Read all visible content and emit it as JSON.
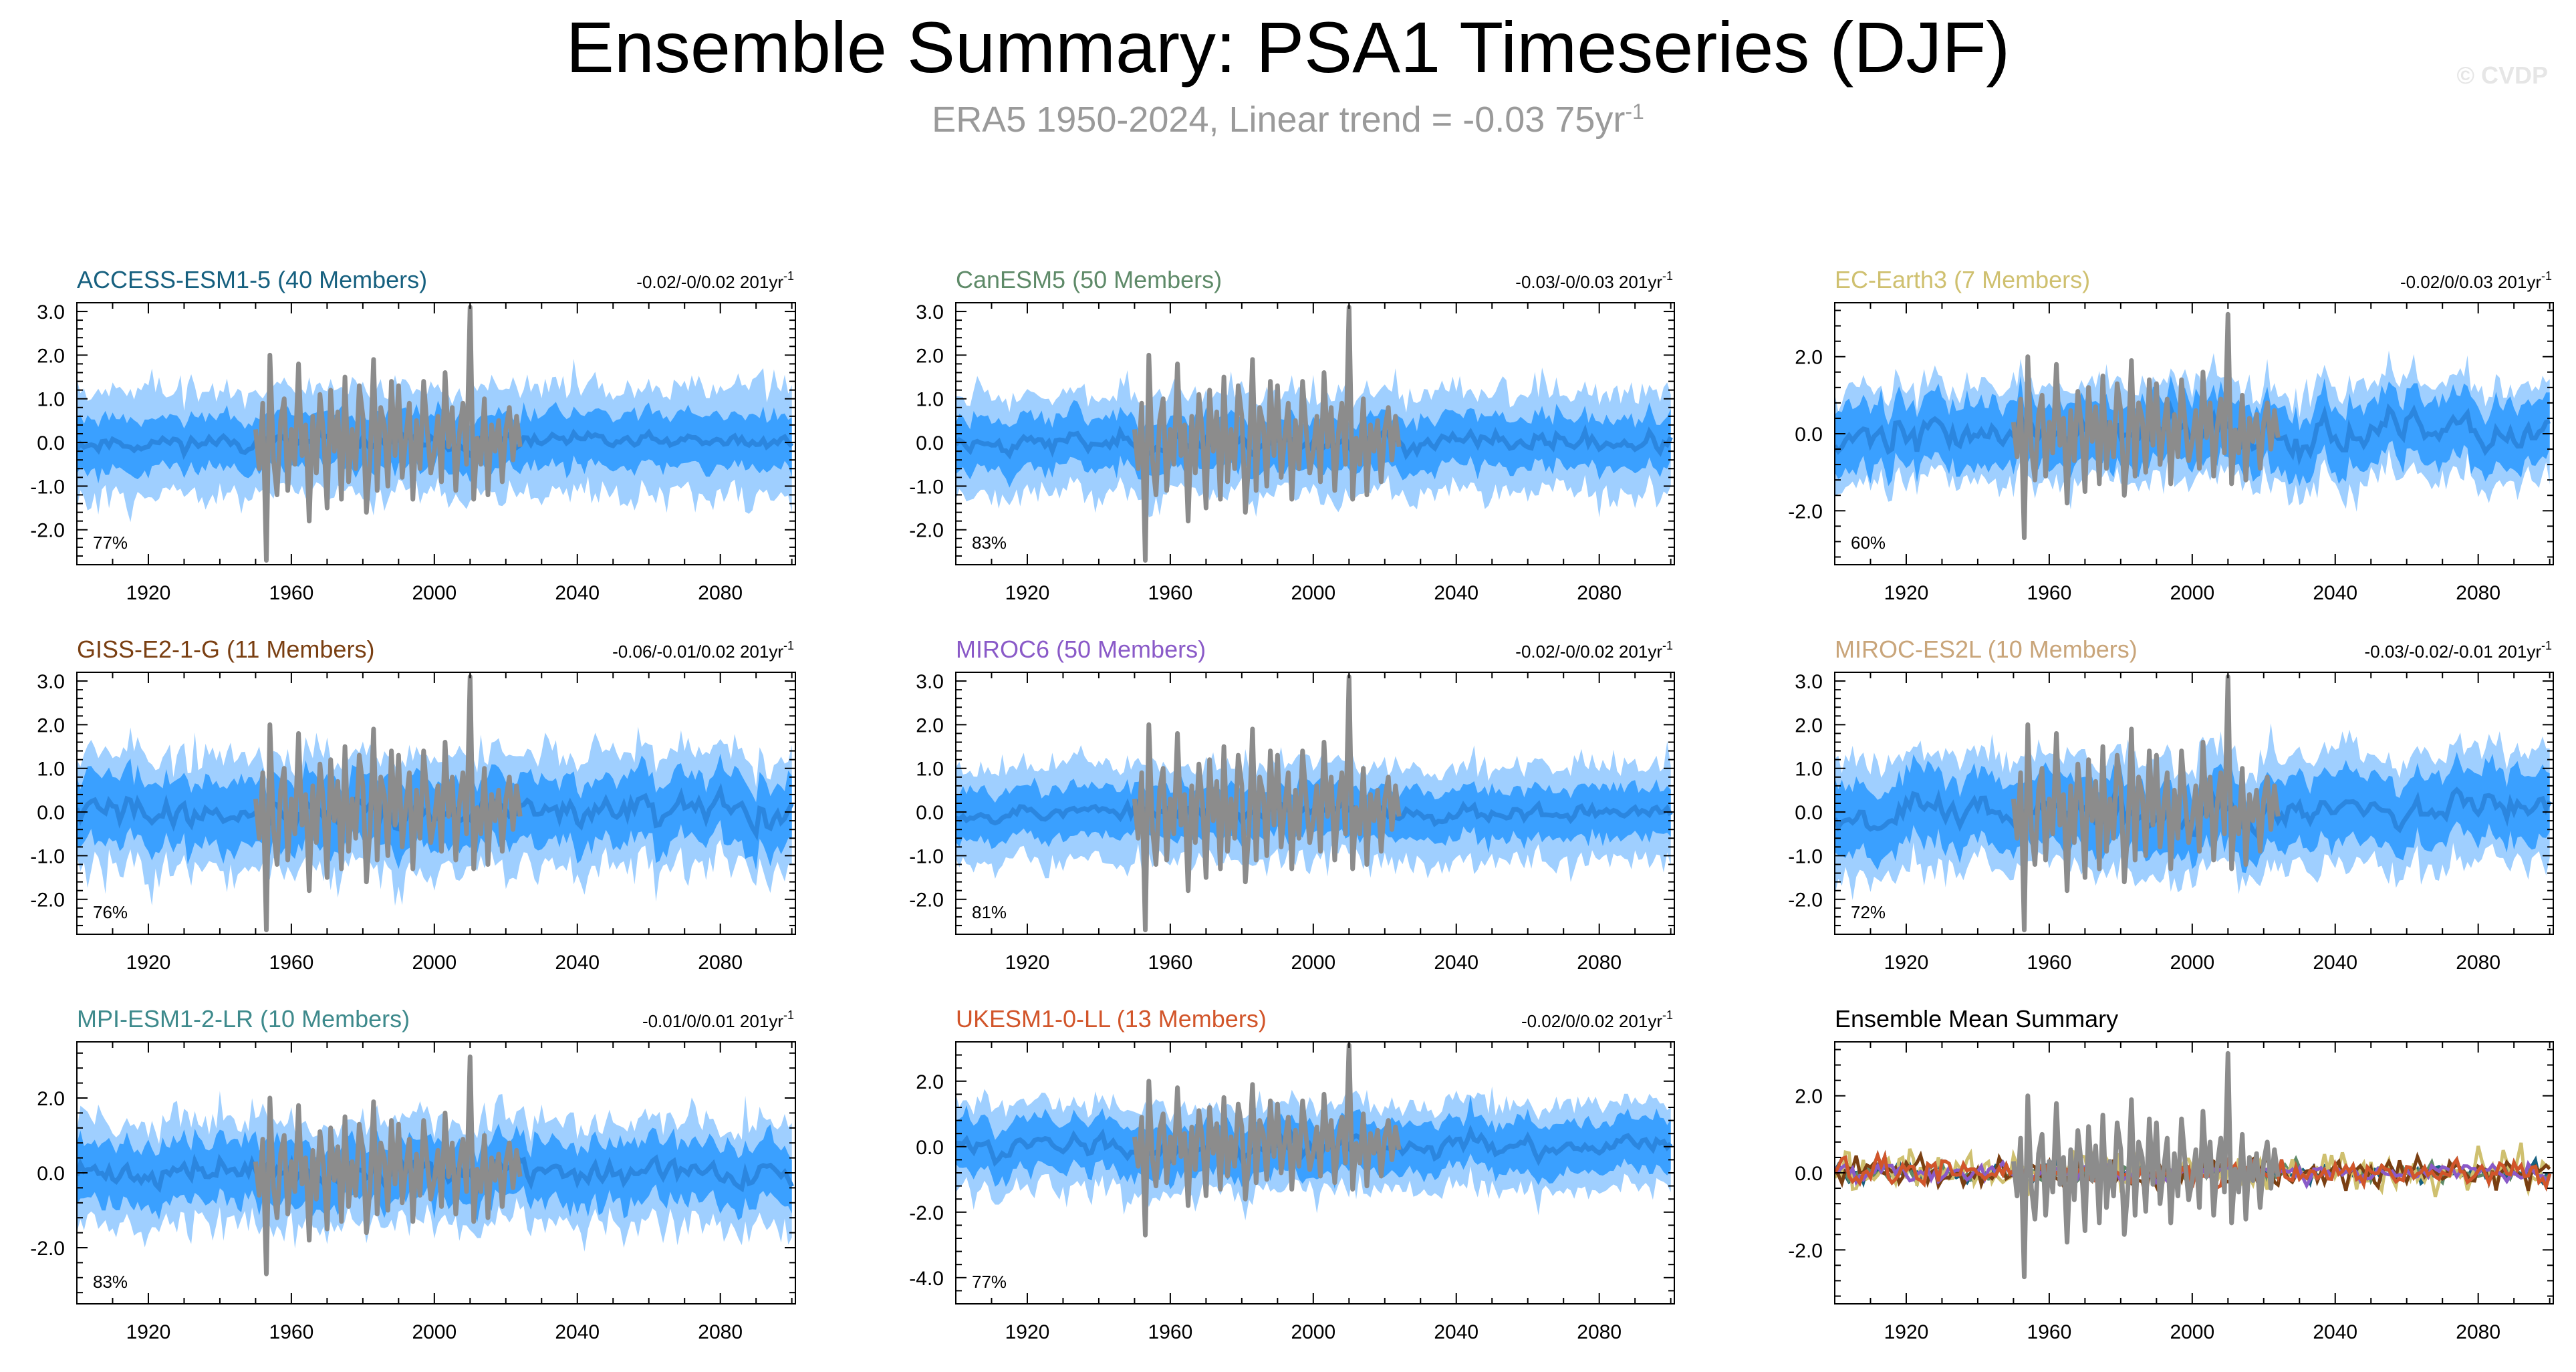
{
  "header": {
    "title": "Ensemble Summary: PSA1 Timeseries (DJF)",
    "subtitle": "ERA5 1950-2024, Linear trend = -0.03 75yr",
    "subtitle_sup": "-1",
    "watermark": "© CVDP"
  },
  "colors": {
    "outer_band": "#9fcfff",
    "inner_band": "#3aa0ff",
    "ens_mean": "#2b86df",
    "obs": "#8c8c8c",
    "axis": "#000000"
  },
  "chart_data": [
    {
      "type": "area",
      "title": "ACCESS-ESM1-5 (40 Members)",
      "title_color": "#16607f",
      "trend": "-0.02/-0/0.02 201yr",
      "trend_sup": "-1",
      "percent": "77%",
      "xlim": [
        1900,
        2101
      ],
      "ylim": [
        -2.8,
        3.2
      ],
      "yticks": [
        3,
        2,
        1,
        0,
        -1,
        -2
      ],
      "ytick_labels": [
        "3.0",
        "2.0",
        "1.0",
        "0.0",
        "-1.0",
        "-2.0"
      ],
      "xticks": [
        1920,
        1960,
        2000,
        2040,
        2080
      ],
      "xtick_labels": [
        "1920",
        "1960",
        "2000",
        "2040",
        "2080"
      ],
      "spread": {
        "outer": 1.15,
        "inner": 0.62,
        "mean_amp": 0.12
      },
      "seed": 11
    },
    {
      "type": "area",
      "title": "CanESM5 (50 Members)",
      "title_color": "#5e8a68",
      "trend": "-0.03/-0/0.03 201yr",
      "trend_sup": "-1",
      "percent": "83%",
      "xlim": [
        1900,
        2101
      ],
      "ylim": [
        -2.8,
        3.2
      ],
      "yticks": [
        3,
        2,
        1,
        0,
        -1,
        -2
      ],
      "ytick_labels": [
        "3.0",
        "2.0",
        "1.0",
        "0.0",
        "-1.0",
        "-2.0"
      ],
      "xticks": [
        1920,
        1960,
        2000,
        2040,
        2080
      ],
      "xtick_labels": [
        "1920",
        "1960",
        "2000",
        "2040",
        "2080"
      ],
      "spread": {
        "outer": 1.1,
        "inner": 0.6,
        "mean_amp": 0.14
      },
      "seed": 23
    },
    {
      "type": "area",
      "title": "EC-Earth3 (7 Members)",
      "title_color": "#cfc06f",
      "trend": "-0.02/0/0.03 201yr",
      "trend_sup": "-1",
      "percent": "60%",
      "xlim": [
        1900,
        2101
      ],
      "ylim": [
        -3.4,
        3.4
      ],
      "yticks": [
        2,
        0,
        -2
      ],
      "ytick_labels": [
        "2.0",
        "0.0",
        "-2.0"
      ],
      "xticks": [
        1920,
        1960,
        2000,
        2040,
        2080
      ],
      "xtick_labels": [
        "1920",
        "1960",
        "2000",
        "2040",
        "2080"
      ],
      "spread": {
        "outer": 1.2,
        "inner": 0.85,
        "mean_amp": 0.28
      },
      "seed": 37
    },
    {
      "type": "area",
      "title": "GISS-E2-1-G (11 Members)",
      "title_color": "#7a3f12",
      "trend": "-0.06/-0.01/0.02 201yr",
      "trend_sup": "-1",
      "percent": "76%",
      "xlim": [
        1900,
        2101
      ],
      "ylim": [
        -2.8,
        3.2
      ],
      "yticks": [
        3,
        2,
        1,
        0,
        -1,
        -2
      ],
      "ytick_labels": [
        "3.0",
        "2.0",
        "1.0",
        "0.0",
        "-1.0",
        "-2.0"
      ],
      "xticks": [
        1920,
        1960,
        2000,
        2040,
        2080
      ],
      "xtick_labels": [
        "1920",
        "1960",
        "2000",
        "2040",
        "2080"
      ],
      "spread": {
        "outer": 1.25,
        "inner": 0.78,
        "mean_amp": 0.22
      },
      "seed": 41
    },
    {
      "type": "area",
      "title": "MIROC6 (50 Members)",
      "title_color": "#8a5ac8",
      "trend": "-0.02/-0/0.02 201yr",
      "trend_sup": "-1",
      "percent": "81%",
      "xlim": [
        1900,
        2101
      ],
      "ylim": [
        -2.8,
        3.2
      ],
      "yticks": [
        3,
        2,
        1,
        0,
        -1,
        -2
      ],
      "ytick_labels": [
        "3.0",
        "2.0",
        "1.0",
        "0.0",
        "-1.0",
        "-2.0"
      ],
      "xticks": [
        1920,
        1960,
        2000,
        2040,
        2080
      ],
      "xtick_labels": [
        "1920",
        "1960",
        "2000",
        "2040",
        "2080"
      ],
      "spread": {
        "outer": 1.05,
        "inner": 0.58,
        "mean_amp": 0.12
      },
      "seed": 53
    },
    {
      "type": "area",
      "title": "MIROC-ES2L (10 Members)",
      "title_color": "#c9a57a",
      "trend": "-0.03/-0.02/-0.01 201yr",
      "trend_sup": "-1",
      "percent": "72%",
      "xlim": [
        1900,
        2101
      ],
      "ylim": [
        -2.8,
        3.2
      ],
      "yticks": [
        3,
        2,
        1,
        0,
        -1,
        -2
      ],
      "ytick_labels": [
        "3.0",
        "2.0",
        "1.0",
        "0.0",
        "-1.0",
        "-2.0"
      ],
      "xticks": [
        1920,
        1960,
        2000,
        2040,
        2080
      ],
      "xtick_labels": [
        "1920",
        "1960",
        "2000",
        "2040",
        "2080"
      ],
      "spread": {
        "outer": 1.25,
        "inner": 0.8,
        "mean_amp": 0.22
      },
      "seed": 67
    },
    {
      "type": "area",
      "title": "MPI-ESM1-2-LR (10 Members)",
      "title_color": "#3e8a8c",
      "trend": "-0.01/0/0.01 201yr",
      "trend_sup": "-1",
      "percent": "83%",
      "xlim": [
        1900,
        2101
      ],
      "ylim": [
        -3.5,
        3.5
      ],
      "yticks": [
        2,
        0,
        -2
      ],
      "ytick_labels": [
        "2.0",
        "0.0",
        "-2.0"
      ],
      "xticks": [
        1920,
        1960,
        2000,
        2040,
        2080
      ],
      "xtick_labels": [
        "1920",
        "1960",
        "2000",
        "2040",
        "2080"
      ],
      "spread": {
        "outer": 1.3,
        "inner": 0.82,
        "mean_amp": 0.22
      },
      "seed": 71
    },
    {
      "type": "area",
      "title": "UKESM1-0-LL (13 Members)",
      "title_color": "#d2552a",
      "trend": "-0.02/0/0.02 201yr",
      "trend_sup": "-1",
      "percent": "77%",
      "xlim": [
        1900,
        2101
      ],
      "ylim": [
        -4.8,
        3.2
      ],
      "yticks": [
        2,
        0,
        -2,
        -4
      ],
      "ytick_labels": [
        "2.0",
        "0.0",
        "-2.0",
        "-4.0"
      ],
      "xticks": [
        1920,
        1960,
        2000,
        2040,
        2080
      ],
      "xtick_labels": [
        "1920",
        "1960",
        "2000",
        "2040",
        "2080"
      ],
      "spread": {
        "outer": 1.25,
        "inner": 0.8,
        "mean_amp": 0.2
      },
      "seed": 83
    },
    {
      "type": "line",
      "title": "Ensemble Mean Summary",
      "title_color": "#000000",
      "trend": "",
      "trend_sup": "",
      "percent": "",
      "xlim": [
        1900,
        2101
      ],
      "ylim": [
        -3.4,
        3.4
      ],
      "yticks": [
        2,
        0,
        -2
      ],
      "ytick_labels": [
        "2.0",
        "0.0",
        "-2.0"
      ],
      "xticks": [
        1920,
        1960,
        2000,
        2040,
        2080
      ],
      "xtick_labels": [
        "1920",
        "1960",
        "2000",
        "2040",
        "2080"
      ],
      "series": [
        {
          "name": "ACCESS-ESM1-5",
          "color": "#16607f",
          "amp": 0.18
        },
        {
          "name": "CanESM5",
          "color": "#5e8a68",
          "amp": 0.16
        },
        {
          "name": "EC-Earth3",
          "color": "#cfc06f",
          "amp": 0.38
        },
        {
          "name": "GISS-E2-1-G",
          "color": "#7a3f12",
          "amp": 0.26
        },
        {
          "name": "MIROC6",
          "color": "#8a5ac8",
          "amp": 0.15
        },
        {
          "name": "MIROC-ES2L",
          "color": "#c9a57a",
          "amp": 0.24
        },
        {
          "name": "MPI-ESM1-2-LR",
          "color": "#3e8a8c",
          "amp": 0.24
        },
        {
          "name": "UKESM1-0-LL",
          "color": "#d2552a",
          "amp": 0.24
        }
      ],
      "seed": 97
    }
  ],
  "observations": {
    "name": "ERA5",
    "years": [
      1950,
      1951,
      1952,
      1953,
      1954,
      1955,
      1956,
      1957,
      1958,
      1959,
      1960,
      1961,
      1962,
      1963,
      1964,
      1965,
      1966,
      1967,
      1968,
      1969,
      1970,
      1971,
      1972,
      1973,
      1974,
      1975,
      1976,
      1977,
      1978,
      1979,
      1980,
      1981,
      1982,
      1983,
      1984,
      1985,
      1986,
      1987,
      1988,
      1989,
      1990,
      1991,
      1992,
      1993,
      1994,
      1995,
      1996,
      1997,
      1998,
      1999,
      2000,
      2001,
      2002,
      2003,
      2004,
      2005,
      2006,
      2007,
      2008,
      2009,
      2010,
      2011,
      2012,
      2013,
      2014,
      2015,
      2016,
      2017,
      2018,
      2019,
      2020,
      2021,
      2022,
      2023,
      2024
    ],
    "values": [
      0.3,
      -0.6,
      0.9,
      -2.7,
      2.0,
      -0.4,
      -1.2,
      0.5,
      1.0,
      -1.1,
      0.3,
      -0.5,
      1.8,
      -0.3,
      0.4,
      -1.8,
      0.6,
      -0.7,
      1.1,
      0.2,
      -1.5,
      1.2,
      -0.2,
      0.7,
      -1.3,
      1.5,
      -0.9,
      0.3,
      -0.6,
      1.3,
      0.6,
      -1.6,
      -0.4,
      1.9,
      -1.1,
      0.8,
      0.4,
      -1.0,
      1.4,
      -0.3,
      1.3,
      -0.8,
      0.1,
      0.9,
      -1.3,
      0.5,
      -0.6,
      1.4,
      0.3,
      -0.7,
      -0.2,
      0.6,
      -0.9,
      1.6,
      -0.1,
      0.8,
      -1.1,
      0.2,
      0.9,
      -0.5,
      3.1,
      -1.3,
      0.1,
      -0.5,
      1.0,
      -1.2,
      0.4,
      -0.2,
      0.5,
      -0.9,
      0.3,
      0.8,
      -0.4,
      0.6,
      -0.1
    ]
  }
}
